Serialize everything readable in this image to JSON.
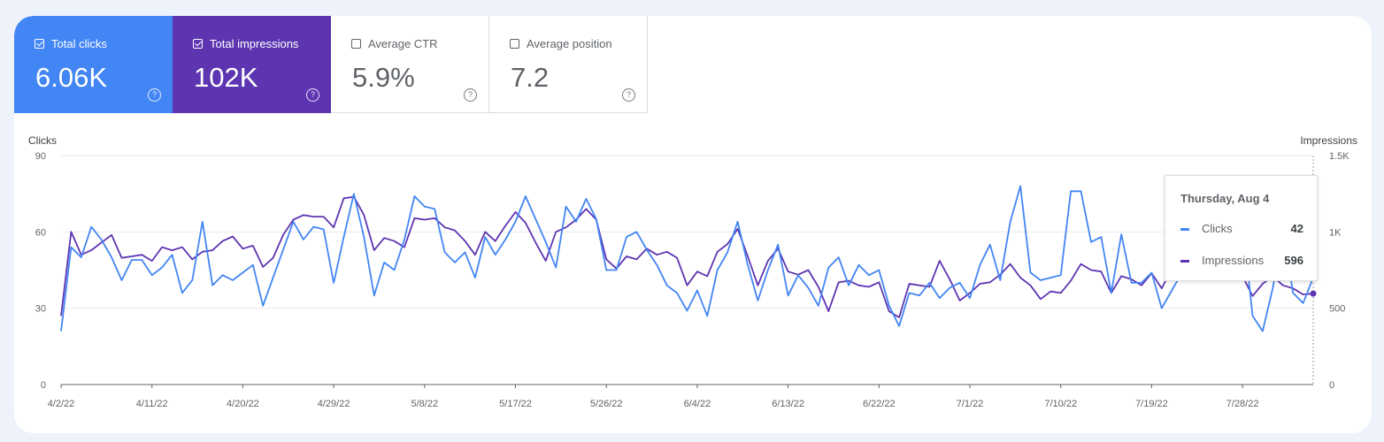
{
  "tiles": {
    "clicks": {
      "label": "Total clicks",
      "value": "6.06K",
      "checked": true
    },
    "impressions": {
      "label": "Total impressions",
      "value": "102K",
      "checked": true
    },
    "ctr": {
      "label": "Average CTR",
      "value": "5.9%",
      "checked": false
    },
    "position": {
      "label": "Average position",
      "value": "7.2",
      "checked": false
    },
    "help_glyph": "?"
  },
  "colors": {
    "clicks": "#4285f4",
    "impressions": "#5e35b1",
    "grid": "#e8eaed",
    "axis_text": "#5f6368"
  },
  "tooltip": {
    "date": "Thursday, Aug 4",
    "rows": [
      {
        "name": "Clicks",
        "value": "42"
      },
      {
        "name": "Impressions",
        "value": "596"
      }
    ]
  },
  "chart_data": {
    "type": "line",
    "y_left_label": "Clicks",
    "y_right_label": "Impressions",
    "y_left_range": [
      0,
      90
    ],
    "y_right_range": [
      0,
      1500
    ],
    "y_left_ticks": [
      {
        "v": 0,
        "t": "0"
      },
      {
        "v": 30,
        "t": "30"
      },
      {
        "v": 60,
        "t": "60"
      },
      {
        "v": 90,
        "t": "90"
      }
    ],
    "y_right_ticks": [
      {
        "v": 0,
        "t": "0"
      },
      {
        "v": 500,
        "t": "500"
      },
      {
        "v": 1000,
        "t": "1K"
      },
      {
        "v": 1500,
        "t": "1.5K"
      }
    ],
    "x_tick_labels": [
      "4/2/22",
      "4/11/22",
      "4/20/22",
      "4/29/22",
      "5/8/22",
      "5/17/22",
      "5/26/22",
      "6/4/22",
      "6/13/22",
      "6/22/22",
      "7/1/22",
      "7/10/22",
      "7/19/22",
      "7/28/22"
    ],
    "grid": true,
    "series": [
      {
        "name": "Clicks",
        "axis": "left",
        "values": [
          21,
          54,
          50,
          62,
          57,
          50,
          41,
          49,
          49,
          43,
          46,
          51,
          36,
          41,
          64,
          39,
          43,
          41,
          44,
          47,
          31,
          42,
          53,
          64,
          57,
          62,
          61,
          40,
          58,
          75,
          58,
          35,
          48,
          45,
          57,
          74,
          70,
          69,
          52,
          48,
          52,
          42,
          58,
          51,
          57,
          64,
          74,
          65,
          56,
          46,
          70,
          64,
          73,
          65,
          45,
          45,
          58,
          60,
          53,
          47,
          39,
          36,
          29,
          37,
          27,
          45,
          52,
          64,
          47,
          33,
          45,
          55,
          35,
          43,
          38,
          31,
          46,
          50,
          39,
          47,
          43,
          45,
          31,
          23,
          36,
          35,
          40,
          34,
          38,
          40,
          34,
          47,
          55,
          41,
          64,
          78,
          44,
          41,
          42,
          43,
          76,
          76,
          56,
          58,
          36,
          59,
          40,
          40,
          44,
          30,
          37,
          44,
          49,
          55,
          61,
          53,
          52,
          64,
          27,
          21,
          38,
          61,
          36,
          32,
          42
        ]
      },
      {
        "name": "Impressions",
        "axis": "right",
        "values": [
          450,
          1000,
          850,
          880,
          930,
          980,
          830,
          840,
          850,
          810,
          900,
          880,
          900,
          820,
          870,
          880,
          940,
          970,
          890,
          910,
          770,
          830,
          980,
          1080,
          1110,
          1100,
          1100,
          1030,
          1220,
          1230,
          1110,
          880,
          960,
          940,
          900,
          1090,
          1080,
          1090,
          1030,
          1010,
          940,
          850,
          1000,
          940,
          1040,
          1130,
          1060,
          930,
          810,
          1000,
          1030,
          1080,
          1150,
          1080,
          820,
          760,
          840,
          820,
          890,
          850,
          870,
          830,
          650,
          740,
          710,
          870,
          920,
          1020,
          840,
          650,
          810,
          890,
          740,
          720,
          750,
          640,
          480,
          670,
          680,
          650,
          640,
          670,
          480,
          440,
          660,
          650,
          640,
          810,
          690,
          550,
          600,
          660,
          670,
          720,
          790,
          700,
          650,
          560,
          610,
          600,
          680,
          790,
          750,
          740,
          600,
          710,
          690,
          650,
          730,
          630,
          760,
          790,
          820,
          980,
          1030,
          940,
          870,
          710,
          580,
          660,
          710,
          650,
          630,
          590,
          596
        ]
      }
    ]
  }
}
